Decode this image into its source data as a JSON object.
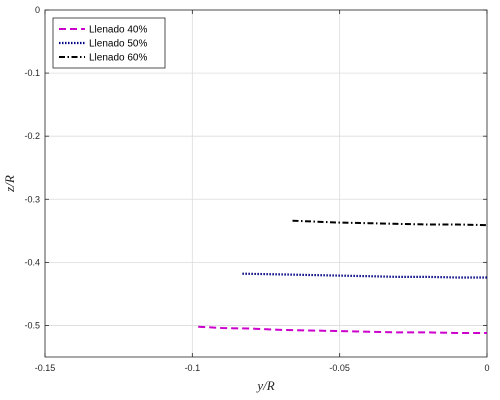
{
  "chart_data": {
    "type": "line",
    "xlabel": "y/R",
    "ylabel": "z/R",
    "xlim": [
      -0.15,
      0
    ],
    "ylim": [
      -0.55,
      0
    ],
    "xticks": [
      -0.15,
      -0.1,
      -0.05,
      0
    ],
    "yticks": [
      0,
      -0.1,
      -0.2,
      -0.3,
      -0.4,
      -0.5
    ],
    "xtick_labels": [
      "-0.15",
      "-0.1",
      "-0.05",
      "0"
    ],
    "ytick_labels": [
      "0",
      "-0.1",
      "-0.2",
      "-0.3",
      "-0.4",
      "-0.5"
    ],
    "grid": true,
    "legend_position": "top-left",
    "series": [
      {
        "name": "Llenado 40%",
        "color": "#cc00cc",
        "dash": "dashed",
        "x": [
          -0.098,
          -0.09,
          -0.08,
          -0.07,
          -0.06,
          -0.05,
          -0.04,
          -0.03,
          -0.02,
          -0.01,
          0
        ],
        "y": [
          -0.502,
          -0.504,
          -0.505,
          -0.507,
          -0.508,
          -0.509,
          -0.51,
          -0.511,
          -0.511,
          -0.512,
          -0.512
        ]
      },
      {
        "name": "Llenado 50%",
        "color": "#000080",
        "dash": "dotted",
        "x": [
          -0.083,
          -0.07,
          -0.06,
          -0.05,
          -0.04,
          -0.03,
          -0.02,
          -0.01,
          0
        ],
        "y": [
          -0.418,
          -0.419,
          -0.42,
          -0.421,
          -0.422,
          -0.423,
          -0.423,
          -0.424,
          -0.424
        ]
      },
      {
        "name": "Llenado 60%",
        "color": "#000000",
        "dash": "dashdot",
        "x": [
          -0.066,
          -0.06,
          -0.05,
          -0.04,
          -0.03,
          -0.02,
          -0.01,
          0
        ],
        "y": [
          -0.334,
          -0.335,
          -0.337,
          -0.338,
          -0.339,
          -0.34,
          -0.34,
          -0.341
        ]
      }
    ]
  }
}
